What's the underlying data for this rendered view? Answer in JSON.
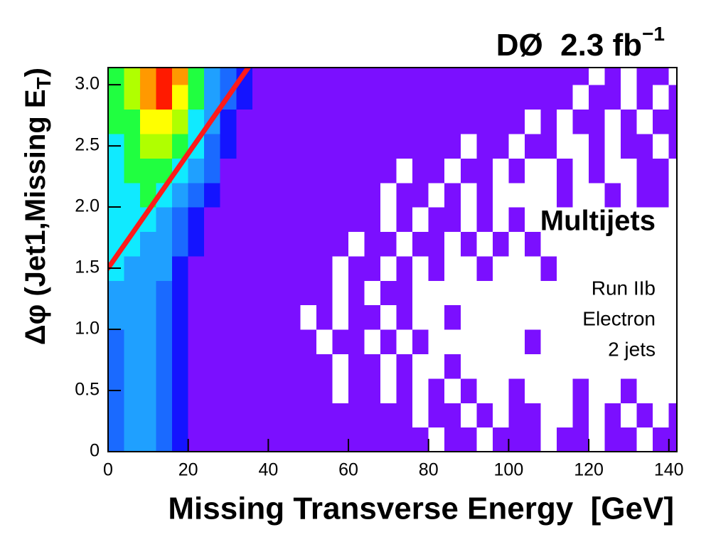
{
  "chart_data": {
    "type": "heatmap",
    "title": "DØ  2.3 fb",
    "title_superscript": "−1",
    "xlabel": "Missing Transverse Energy  [GeV]",
    "ylabel": {
      "text": "Δφ (Jet1,Missing E",
      "subscript": "T",
      "suffix": ")"
    },
    "annotations": [
      "Multijets",
      "Run IIb",
      "Electron",
      "2 jets"
    ],
    "xlim": [
      0,
      142
    ],
    "ylim": [
      0,
      3.14
    ],
    "xticks": [
      0,
      20,
      40,
      60,
      80,
      100,
      120,
      140
    ],
    "yticks": [
      0,
      0.5,
      {
        "value": 1,
        "label": "1.0"
      },
      1.5,
      {
        "value": 2,
        "label": "2.0"
      },
      2.5,
      {
        "value": 3,
        "label": "3.0"
      }
    ],
    "xbins": [
      0,
      4,
      8,
      12,
      16,
      20,
      24,
      28,
      32,
      36,
      40,
      44,
      48,
      52,
      56,
      60,
      64,
      68,
      72,
      76,
      80,
      84,
      88,
      92,
      96,
      100,
      104,
      108,
      112,
      116,
      120,
      124,
      128,
      132,
      136,
      140,
      144
    ],
    "ybins": [
      0,
      0.2,
      0.4,
      0.6,
      0.8,
      1,
      1.2,
      1.4,
      1.6,
      1.8,
      2,
      2.2,
      2.4,
      2.6,
      2.8,
      3,
      3.2
    ],
    "colors": [
      "#ffffff",
      "#7b0fff",
      "#1414ff",
      "#1a6aff",
      "#1fa0ff",
      "#10eaff",
      "#20ff40",
      "#b0ff00",
      "#ffff00",
      "#ff9900",
      "#ff1a00"
    ],
    "z": [
      [
        3,
        4,
        4,
        3,
        2,
        1,
        1,
        1,
        1,
        1,
        1,
        1,
        1,
        1,
        1,
        1,
        1,
        1,
        1,
        1,
        0,
        1,
        1,
        0,
        1,
        1,
        1,
        0,
        1,
        1,
        0,
        1,
        1,
        0,
        1,
        1
      ],
      [
        3,
        4,
        4,
        3,
        2,
        1,
        1,
        1,
        1,
        1,
        1,
        1,
        1,
        1,
        1,
        1,
        1,
        1,
        1,
        0,
        1,
        1,
        0,
        1,
        0,
        1,
        1,
        0,
        0,
        1,
        0,
        1,
        0,
        1,
        0,
        1
      ],
      [
        3,
        4,
        4,
        3,
        2,
        1,
        1,
        1,
        1,
        1,
        1,
        1,
        1,
        1,
        0,
        1,
        1,
        0,
        1,
        0,
        1,
        0,
        1,
        0,
        0,
        1,
        0,
        0,
        0,
        1,
        0,
        0,
        1,
        0,
        0,
        0
      ],
      [
        3,
        4,
        4,
        3,
        2,
        1,
        1,
        1,
        1,
        1,
        1,
        1,
        1,
        1,
        0,
        1,
        1,
        0,
        1,
        0,
        0,
        1,
        0,
        0,
        0,
        0,
        0,
        0,
        0,
        0,
        0,
        0,
        0,
        0,
        0,
        0
      ],
      [
        3,
        4,
        4,
        3,
        2,
        1,
        1,
        1,
        1,
        1,
        1,
        1,
        1,
        0,
        1,
        1,
        0,
        1,
        0,
        1,
        0,
        0,
        0,
        0,
        0,
        0,
        1,
        0,
        0,
        0,
        0,
        0,
        0,
        0,
        0,
        0
      ],
      [
        4,
        4,
        4,
        3,
        2,
        1,
        1,
        1,
        1,
        1,
        1,
        1,
        0,
        1,
        0,
        1,
        1,
        0,
        1,
        0,
        0,
        1,
        0,
        0,
        0,
        0,
        0,
        0,
        0,
        0,
        0,
        0,
        0,
        0,
        0,
        0
      ],
      [
        4,
        4,
        4,
        3,
        2,
        1,
        1,
        1,
        1,
        1,
        1,
        1,
        1,
        1,
        0,
        1,
        0,
        1,
        1,
        0,
        0,
        0,
        0,
        0,
        0,
        0,
        0,
        0,
        0,
        0,
        0,
        0,
        0,
        0,
        0,
        0
      ],
      [
        5,
        4,
        4,
        4,
        2,
        1,
        1,
        1,
        1,
        1,
        1,
        1,
        1,
        1,
        0,
        1,
        1,
        0,
        1,
        0,
        1,
        0,
        0,
        1,
        0,
        0,
        0,
        1,
        0,
        0,
        0,
        0,
        0,
        0,
        0,
        0
      ],
      [
        5,
        5,
        4,
        4,
        3,
        2,
        1,
        1,
        1,
        1,
        1,
        1,
        1,
        1,
        1,
        0,
        1,
        1,
        0,
        1,
        1,
        0,
        1,
        0,
        1,
        0,
        1,
        0,
        0,
        0,
        0,
        0,
        0,
        0,
        0,
        0
      ],
      [
        5,
        5,
        5,
        4,
        3,
        2,
        1,
        1,
        1,
        1,
        1,
        1,
        1,
        1,
        1,
        1,
        1,
        0,
        1,
        0,
        1,
        1,
        0,
        1,
        0,
        1,
        0,
        0,
        0,
        0,
        0,
        0,
        0,
        0,
        0,
        0
      ],
      [
        5,
        5,
        6,
        5,
        4,
        3,
        2,
        1,
        1,
        1,
        1,
        1,
        1,
        1,
        1,
        1,
        1,
        0,
        1,
        1,
        0,
        1,
        0,
        1,
        0,
        0,
        0,
        0,
        1,
        0,
        0,
        1,
        0,
        1,
        1,
        0
      ],
      [
        5,
        6,
        6,
        6,
        5,
        4,
        3,
        1,
        1,
        1,
        1,
        1,
        1,
        1,
        1,
        1,
        1,
        1,
        0,
        1,
        1,
        0,
        1,
        1,
        0,
        1,
        0,
        0,
        1,
        0,
        1,
        0,
        0,
        1,
        1,
        0
      ],
      [
        5,
        6,
        7,
        7,
        6,
        5,
        3,
        2,
        1,
        1,
        1,
        1,
        1,
        1,
        1,
        1,
        1,
        1,
        1,
        1,
        1,
        1,
        0,
        1,
        1,
        0,
        1,
        1,
        0,
        0,
        1,
        0,
        1,
        1,
        0,
        1
      ],
      [
        6,
        6,
        8,
        8,
        7,
        5,
        4,
        2,
        1,
        1,
        1,
        1,
        1,
        1,
        1,
        1,
        1,
        1,
        1,
        1,
        1,
        1,
        1,
        1,
        1,
        1,
        0,
        1,
        0,
        1,
        1,
        0,
        1,
        0,
        1,
        1
      ],
      [
        6,
        7,
        9,
        10,
        8,
        6,
        4,
        3,
        2,
        1,
        1,
        1,
        1,
        1,
        1,
        1,
        1,
        1,
        1,
        1,
        1,
        1,
        1,
        1,
        1,
        1,
        1,
        1,
        1,
        0,
        1,
        1,
        0,
        1,
        0,
        1
      ],
      [
        6,
        7,
        9,
        10,
        9,
        6,
        4,
        3,
        2,
        1,
        1,
        1,
        1,
        1,
        1,
        1,
        1,
        1,
        1,
        1,
        1,
        1,
        1,
        1,
        1,
        1,
        1,
        1,
        1,
        1,
        0,
        1,
        0,
        1,
        1,
        0
      ]
    ],
    "cut_line": {
      "x": [
        0,
        35
      ],
      "y": [
        1.5,
        3.14
      ],
      "color": "#ff1a1a"
    }
  }
}
